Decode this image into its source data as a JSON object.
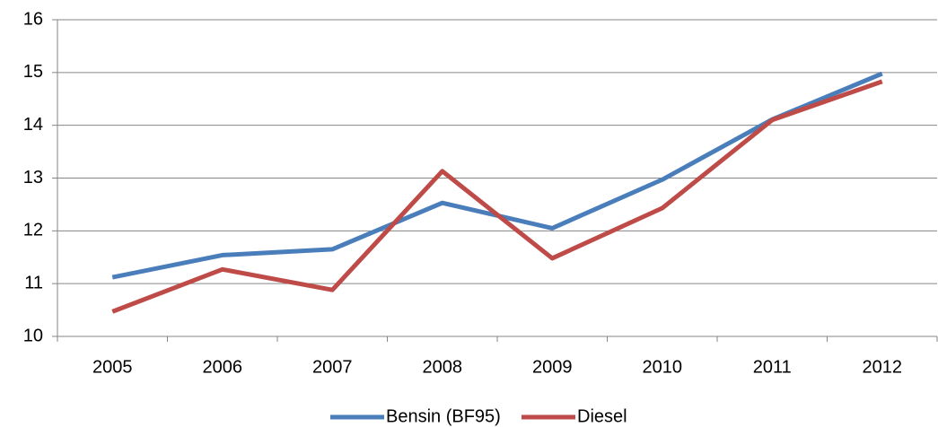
{
  "chart_data": {
    "type": "line",
    "categories": [
      "2005",
      "2006",
      "2007",
      "2008",
      "2009",
      "2010",
      "2011",
      "2012"
    ],
    "series": [
      {
        "name": "Bensin (BF95)",
        "color": "#4a7ebb",
        "values": [
          11.12,
          11.54,
          11.65,
          12.53,
          12.05,
          12.97,
          14.11,
          14.98
        ]
      },
      {
        "name": "Diesel",
        "color": "#be4b48",
        "values": [
          10.47,
          11.27,
          10.88,
          13.13,
          11.48,
          12.43,
          14.1,
          14.83
        ]
      }
    ],
    "ylim": [
      10,
      16
    ],
    "yticks": [
      10,
      11,
      12,
      13,
      14,
      15,
      16
    ],
    "grid": true,
    "legend": "bottom"
  }
}
